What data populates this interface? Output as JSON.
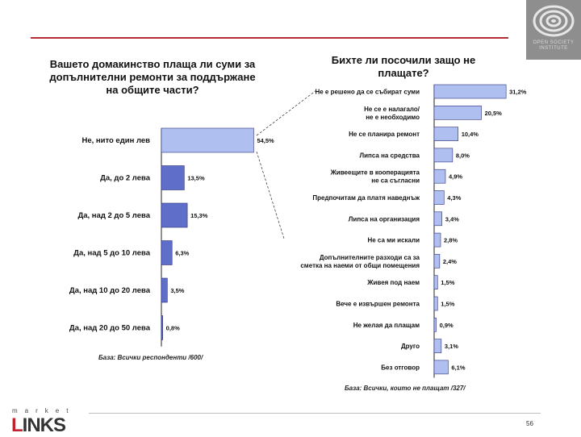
{
  "logo": {
    "text": "OPEN SOCIETY INSTITUTE"
  },
  "left_title": "Вашето домакинство плаща ли суми за допълнителни ремонти за поддържане на общите части?",
  "right_title": "Бихте ли посочили защо не плащате?",
  "left_base": "База: Всички респонденти /600/",
  "right_base": "База: Всички, които не плащат /327/",
  "brand": {
    "small": "market",
    "big_l": "L",
    "big_rest": "INKS"
  },
  "page_number": "56",
  "colors": {
    "bar_light": "#aebff0",
    "bar_dark": "#5f6fc9",
    "bar_stroke": "#30307a",
    "accent_red": "#b52a35"
  },
  "chart_data": [
    {
      "type": "bar",
      "orientation": "horizontal",
      "title": "Вашето домакинство плаща ли суми за допълнителни ремонти за поддържане на общите части?",
      "categories": [
        "Не, нито един лев",
        "Да, до 2 лева",
        "Да, над 2 до 5 лева",
        "Да, над 5 до 10 лева",
        "Да, над 10 до 20 лева",
        "Да, над 20 до 50 лева"
      ],
      "values": [
        54.5,
        13.5,
        15.3,
        6.3,
        3.5,
        0.8
      ],
      "labels": [
        "54,5%",
        "13,5%",
        "15,3%",
        "6,3%",
        "3,5%",
        "0,8%"
      ],
      "xlim": [
        0,
        60
      ]
    },
    {
      "type": "bar",
      "orientation": "horizontal",
      "title": "Бихте ли посочили защо не плащате?",
      "categories": [
        [
          "Не е решено да се събират суми"
        ],
        [
          "Не се е налагало/",
          "не е необходимо"
        ],
        [
          "Не се планира ремонт"
        ],
        [
          "Липса на средства"
        ],
        [
          "Живеещите в кооперацията",
          "не са съгласни"
        ],
        [
          "Предпочитам да платя наведнъж"
        ],
        [
          "Липса на организация"
        ],
        [
          "Не са ми искали"
        ],
        [
          "Допълнителните разходи са за",
          "сметка на наеми от общи помещения"
        ],
        [
          "Живея под наем"
        ],
        [
          "Вече е извършен ремонта"
        ],
        [
          "Не желая да плащам"
        ],
        [
          "Друго"
        ],
        [
          "Без отговор"
        ]
      ],
      "values": [
        31.2,
        20.5,
        10.4,
        8.0,
        4.9,
        4.3,
        3.4,
        2.8,
        2.4,
        1.5,
        1.5,
        0.9,
        3.1,
        6.1
      ],
      "labels": [
        "31,2%",
        "20,5%",
        "10,4%",
        "8,0%",
        "4,9%",
        "4,3%",
        "3,4%",
        "2,8%",
        "2,4%",
        "1,5%",
        "1,5%",
        "0,9%",
        "3,1%",
        "6,1%"
      ],
      "xlim": [
        0,
        35
      ]
    }
  ]
}
